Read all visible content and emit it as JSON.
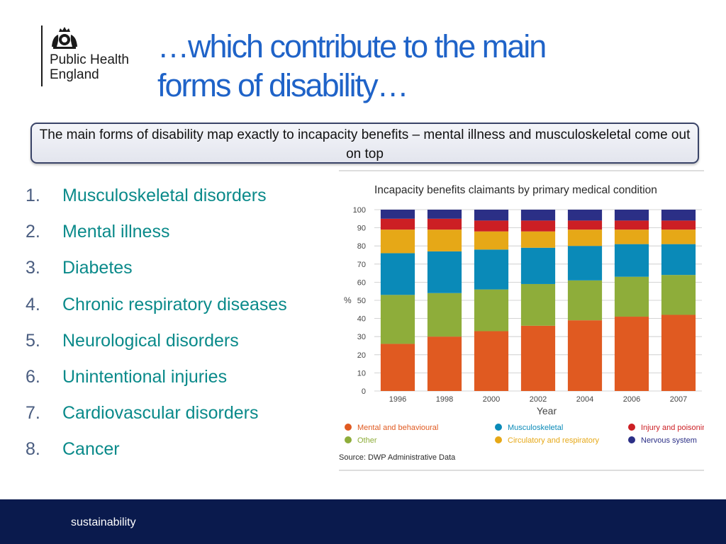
{
  "logo": {
    "line1": "Public Health",
    "line2": "England"
  },
  "title": {
    "line1": "…which contribute to the main",
    "line2": "forms of disability…"
  },
  "callout": "The main forms of disability map exactly to incapacity benefits – mental illness and musculoskeletal come out on top",
  "conditions": [
    {
      "num": "1.",
      "label": "Musculoskeletal disorders"
    },
    {
      "num": "2.",
      "label": "Mental illness"
    },
    {
      "num": "3.",
      "label": "Diabetes"
    },
    {
      "num": "4.",
      "label": "Chronic respiratory diseases"
    },
    {
      "num": "5.",
      "label": "Neurological disorders"
    },
    {
      "num": "6.",
      "label": "Unintentional injuries"
    },
    {
      "num": "7.",
      "label": "Cardiovascular disorders"
    },
    {
      "num": "8.",
      "label": "Cancer"
    }
  ],
  "chart_data": {
    "type": "bar",
    "stacked": true,
    "title": "Incapacity benefits claimants by primary medical condition",
    "xlabel": "Year",
    "ylabel": "%",
    "ylim": [
      0,
      100
    ],
    "yticks": [
      0,
      10,
      20,
      30,
      40,
      50,
      60,
      70,
      80,
      90,
      100
    ],
    "categories": [
      "1996",
      "1998",
      "2000",
      "2002",
      "2004",
      "2006",
      "2007"
    ],
    "series": [
      {
        "name": "Mental and behavioural",
        "color": "#e05a21",
        "values": [
          26,
          30,
          33,
          36,
          39,
          41,
          42
        ]
      },
      {
        "name": "Other",
        "color": "#8ead3a",
        "values": [
          27,
          24,
          23,
          23,
          22,
          22,
          22
        ]
      },
      {
        "name": "Musculoskeletal",
        "color": "#0a8ab8",
        "values": [
          23,
          23,
          22,
          20,
          19,
          18,
          17
        ]
      },
      {
        "name": "Circulatory and respiratory",
        "color": "#e6a817",
        "values": [
          13,
          12,
          10,
          9,
          9,
          8,
          8
        ]
      },
      {
        "name": "Injury and poisoning",
        "color": "#cc1f24",
        "values": [
          6,
          6,
          6,
          6,
          5,
          5,
          5
        ]
      },
      {
        "name": "Nervous system",
        "color": "#2b2f86",
        "values": [
          5,
          5,
          6,
          6,
          6,
          6,
          6
        ]
      }
    ],
    "legend": {
      "position": "bottom",
      "order": [
        "Mental and behavioural",
        "Musculoskeletal",
        "Injury and poisoning",
        "Other",
        "Circulatory and respiratory",
        "Nervous system"
      ]
    },
    "source": "Source: DWP Administrative Data"
  },
  "footer": {
    "text": "sustainability"
  }
}
